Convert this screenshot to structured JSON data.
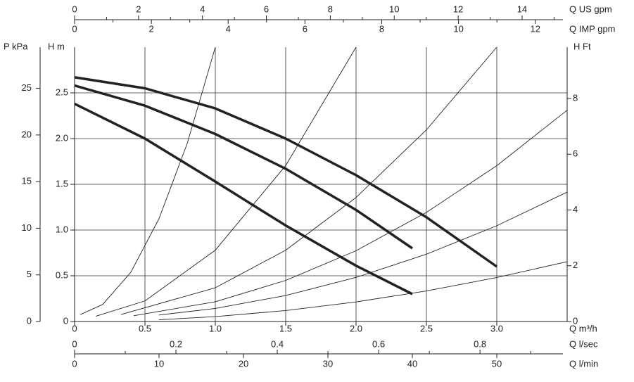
{
  "chart_data": {
    "type": "line",
    "grid": true,
    "x_axes": [
      {
        "label": "Q US gpm",
        "position": "top",
        "lim": [
          0,
          15.41
        ],
        "ticks": [
          0,
          2,
          4,
          6,
          8,
          10,
          12,
          14
        ],
        "minor_ticks": [
          1,
          3,
          5,
          7,
          9,
          11,
          13,
          15
        ]
      },
      {
        "label": "Q IMP gpm",
        "position": "top",
        "lim": [
          0,
          12.83
        ],
        "ticks": [
          0,
          2,
          4,
          6,
          8,
          10,
          12
        ],
        "minor_ticks": [
          1,
          3,
          5,
          7,
          9,
          11
        ]
      },
      {
        "label": "Q m³/h",
        "position": "bottom",
        "lim": [
          0,
          3.5
        ],
        "ticks": [
          0,
          0.5,
          {
            "value": 1,
            "label": "1.0"
          },
          1.5,
          {
            "value": 2,
            "label": "2.0"
          },
          2.5,
          {
            "value": 3,
            "label": "3.0"
          }
        ],
        "minor_ticks": []
      },
      {
        "label": "Q l/sec",
        "position": "bottom",
        "lim": [
          0,
          0.972
        ],
        "ticks": [
          0,
          0.2,
          0.4,
          0.6,
          0.8
        ],
        "minor_ticks": [
          0.1,
          0.3,
          0.5,
          0.7,
          0.9
        ]
      },
      {
        "label": "Q l/min",
        "position": "bottom",
        "lim": [
          0,
          58.33
        ],
        "ticks": [
          0,
          10,
          20,
          30,
          40,
          50
        ],
        "minor_ticks": []
      }
    ],
    "y_axes": [
      {
        "label": "P kPa",
        "position": "left",
        "lim": [
          0,
          29.42
        ],
        "ticks": [
          0,
          5,
          10,
          15,
          20,
          25
        ]
      },
      {
        "label": "H m",
        "position": "left",
        "lim": [
          0,
          3
        ],
        "ticks": [
          0,
          0.5,
          {
            "value": 1,
            "label": "1.0"
          },
          1.5,
          {
            "value": 2,
            "label": "2.0"
          },
          2.5
        ]
      },
      {
        "label": "H Ft",
        "position": "right",
        "lim": [
          0,
          9.843
        ],
        "ticks": [
          0,
          2,
          4,
          6,
          8
        ]
      }
    ],
    "series": [
      {
        "color": "#222222",
        "line_width": 3.5,
        "x": [
          0,
          0.5,
          1.0,
          1.5,
          2.0,
          2.5,
          3.0
        ],
        "values": [
          2.67,
          2.55,
          2.33,
          2.0,
          1.6,
          1.14,
          0.6
        ]
      },
      {
        "color": "#222222",
        "line_width": 3.5,
        "x": [
          0,
          0.5,
          1.0,
          1.5,
          2.0,
          2.4
        ],
        "values": [
          2.58,
          2.36,
          2.05,
          1.67,
          1.22,
          0.8
        ]
      },
      {
        "color": "#222222",
        "line_width": 3.5,
        "x": [
          0,
          0.5,
          1.0,
          1.5,
          2.0,
          2.4
        ],
        "values": [
          2.38,
          2.0,
          1.53,
          1.05,
          0.61,
          0.3
        ]
      },
      {
        "color": "#222222",
        "line_width": 0.9,
        "x": [
          0.04,
          0.2,
          0.4,
          0.6,
          0.8,
          1.0
        ],
        "values": [
          0.075,
          0.187,
          0.539,
          1.125,
          1.945,
          3.0
        ]
      },
      {
        "color": "#222222",
        "line_width": 0.9,
        "x": [
          0.15,
          0.5,
          1.0,
          1.5,
          2.0
        ],
        "values": [
          0.057,
          0.225,
          0.78,
          1.705,
          3.0
        ]
      },
      {
        "color": "#222222",
        "line_width": 0.9,
        "x": [
          0.33,
          1.0,
          1.5,
          2.0,
          2.5,
          3.0
        ],
        "values": [
          0.076,
          0.369,
          0.78,
          1.356,
          2.096,
          3.0
        ]
      },
      {
        "color": "#222222",
        "line_width": 0.9,
        "x": [
          0.42,
          1.0,
          1.5,
          2.0,
          2.5,
          3.0,
          3.5
        ],
        "values": [
          0.063,
          0.216,
          0.449,
          0.774,
          1.193,
          1.704,
          2.31
        ]
      },
      {
        "color": "#222222",
        "line_width": 0.9,
        "x": [
          0.6,
          1.0,
          1.5,
          2.0,
          2.5,
          3.0,
          3.5
        ],
        "values": [
          0.071,
          0.143,
          0.284,
          0.482,
          0.736,
          1.047,
          1.415
        ]
      },
      {
        "color": "#222222",
        "line_width": 0.9,
        "x": [
          0.6,
          1.0,
          1.5,
          2.0,
          2.5,
          3.0,
          3.5
        ],
        "values": [
          0.019,
          0.053,
          0.12,
          0.214,
          0.334,
          0.481,
          0.654
        ]
      }
    ]
  }
}
